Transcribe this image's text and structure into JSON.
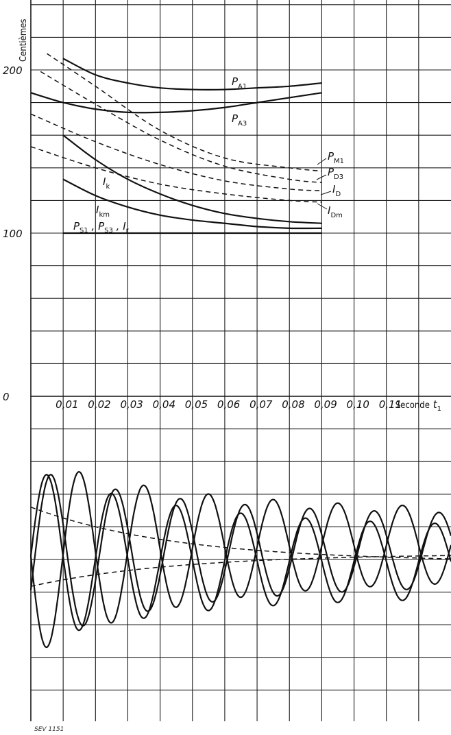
{
  "chart_data": [
    {
      "type": "line",
      "ylabel": "Centièmes",
      "y_ticks": [
        "200",
        "100",
        "0"
      ],
      "ylim": [
        0,
        240
      ],
      "xlim": [
        0,
        0.13
      ],
      "x_tick_labels": [
        "0,01",
        "0,02",
        "0,03",
        "0,04",
        "0,05",
        "0,06",
        "0,07",
        "0,08",
        "0,09",
        "0,10",
        "0,11"
      ],
      "x_tick_values": [
        0.01,
        0.02,
        0.03,
        0.04,
        0.05,
        0.06,
        0.07,
        0.08,
        0.09,
        0.1,
        0.11
      ],
      "xlabel": "Seconde",
      "xlabel_symbol": "t",
      "xlabel_symbol_sub": "1",
      "grid": true,
      "series": [
        {
          "name": "P",
          "sub": "A1",
          "style": "solid",
          "x": [
            0.01,
            0.02,
            0.03,
            0.04,
            0.05,
            0.06,
            0.07,
            0.08,
            0.09
          ],
          "y": [
            207,
            197,
            192,
            189,
            188,
            188,
            189,
            190,
            192
          ]
        },
        {
          "name": "P",
          "sub": "A3",
          "style": "solid",
          "x": [
            0.0,
            0.01,
            0.02,
            0.03,
            0.04,
            0.05,
            0.06,
            0.07,
            0.08,
            0.09
          ],
          "y": [
            186,
            180,
            176,
            174,
            174,
            175,
            177,
            180,
            183,
            186
          ]
        },
        {
          "name": "P",
          "sub": "M1",
          "style": "dashed",
          "x": [
            0.005,
            0.02,
            0.04,
            0.06,
            0.08,
            0.09
          ],
          "y": [
            210,
            190,
            163,
            146,
            140,
            138
          ]
        },
        {
          "name": "P",
          "sub": "D3",
          "style": "dashed",
          "x": [
            0.003,
            0.02,
            0.04,
            0.06,
            0.08,
            0.09
          ],
          "y": [
            199,
            179,
            157,
            141,
            133,
            131
          ]
        },
        {
          "name": "I",
          "sub": "D",
          "style": "dashed",
          "x": [
            0.0,
            0.02,
            0.04,
            0.06,
            0.08,
            0.09
          ],
          "y": [
            173,
            156,
            142,
            132,
            127,
            126
          ]
        },
        {
          "name": "I",
          "sub": "Dm",
          "style": "dashed",
          "x": [
            0.0,
            0.02,
            0.04,
            0.06,
            0.08,
            0.09
          ],
          "y": [
            153,
            140,
            130,
            124,
            120,
            119
          ]
        },
        {
          "name": "I",
          "sub": "k",
          "style": "solid",
          "x": [
            0.01,
            0.02,
            0.03,
            0.04,
            0.05,
            0.06,
            0.07,
            0.08,
            0.09
          ],
          "y": [
            160,
            145,
            133,
            124,
            117,
            112,
            109,
            107,
            106
          ]
        },
        {
          "name": "I",
          "sub": "km",
          "style": "solid",
          "x": [
            0.01,
            0.02,
            0.03,
            0.04,
            0.05,
            0.06,
            0.07,
            0.08,
            0.09
          ],
          "y": [
            133,
            123,
            116,
            111,
            108,
            106,
            104,
            103,
            103
          ]
        },
        {
          "name": "P",
          "sub": "S1, P S3, I r",
          "style": "solid",
          "x": [
            0.01,
            0.09
          ],
          "y": [
            100,
            100
          ]
        }
      ],
      "label_parts": [
        {
          "t": "P",
          "s": "S1"
        },
        {
          "t": ","
        },
        {
          "t": "P",
          "s": "S3"
        },
        {
          "t": ","
        },
        {
          "t": "I",
          "s": "r"
        }
      ]
    },
    {
      "type": "line",
      "description_free": true,
      "xlim": [
        0,
        0.13
      ],
      "series": [
        {
          "style": "solid",
          "kind": "oscillation",
          "phase": "minus_sine",
          "amp_start": 0.85,
          "amp_end": 0.3,
          "offset_start": 0,
          "offset_end": 0.1
        },
        {
          "style": "solid",
          "kind": "oscillation",
          "phase": "sine_a",
          "amp_start": 0.75,
          "amp_end": 0.3,
          "offset_start": 0,
          "offset_end": -0.05
        },
        {
          "style": "solid",
          "kind": "oscillation",
          "phase": "sine_b",
          "amp_start": 0.75,
          "amp_end": 0.3,
          "offset_start": 0,
          "offset_end": 0.05
        },
        {
          "style": "dashed",
          "kind": "decay",
          "start": 0.42,
          "end": -0.05
        },
        {
          "style": "dashed",
          "kind": "decay",
          "start": -0.26,
          "end": 0.02
        }
      ]
    }
  ],
  "caption": "SEV 1151",
  "colors": {
    "ink": "#111111",
    "paper": "#ffffff"
  }
}
